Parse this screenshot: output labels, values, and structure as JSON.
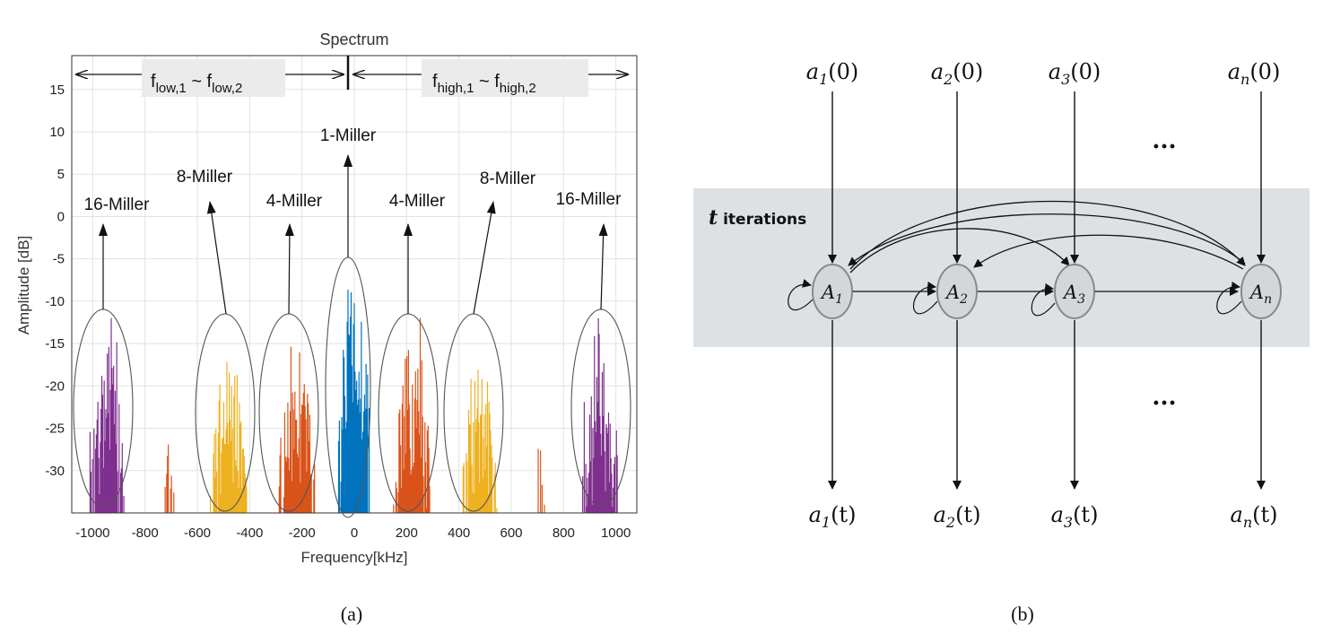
{
  "chart_data": {
    "type": "bar",
    "title": "Spectrum",
    "xlabel": "Frequency[kHz]",
    "ylabel": "Amplitude [dB]",
    "xlim": [
      -1080,
      1080
    ],
    "ylim": [
      -35,
      19
    ],
    "xticks": [
      "-1000",
      "-800",
      "-600",
      "-400",
      "-200",
      "0",
      "200",
      "400",
      "600",
      "800",
      "1000"
    ],
    "yticks": [
      "15",
      "10",
      "5",
      "0",
      "-5",
      "-10",
      "-15",
      "-20",
      "-25",
      "-30"
    ],
    "grid": true,
    "bands": [
      {
        "label_main": "f",
        "sub1": "low,1",
        "mid": " ~ f",
        "sub2": "low,2"
      },
      {
        "label_main": "f",
        "sub1": "high,1",
        "mid": " ~ f",
        "sub2": "high,2"
      }
    ],
    "annotations": [
      "16-Miller",
      "8-Miller",
      "4-Miller",
      "1-Miller",
      "4-Miller",
      "8-Miller",
      "16-Miller"
    ],
    "series": [
      {
        "name": "1-Miller",
        "color": "#0072bd",
        "center": 0,
        "peak": -4
      },
      {
        "name": "4-Miller",
        "color": "#d95319",
        "center": 220,
        "peak": -11
      },
      {
        "name": "8-Miller",
        "color": "#edb120",
        "center": 480,
        "peak": -13
      },
      {
        "name": "16-Miller",
        "color": "#7e2f8e",
        "center": 940,
        "peak": -12
      }
    ],
    "caption": "(a)"
  },
  "diagram": {
    "inputs": [
      {
        "base": "a",
        "sub": "1",
        "arg": "(0)"
      },
      {
        "base": "a",
        "sub": "2",
        "arg": "(0)"
      },
      {
        "base": "a",
        "sub": "3",
        "arg": "(0)"
      },
      {
        "base": "a",
        "sub": "n",
        "arg": "(0)"
      }
    ],
    "nodes": [
      {
        "base": "A",
        "sub": "1"
      },
      {
        "base": "A",
        "sub": "2"
      },
      {
        "base": "A",
        "sub": "3"
      },
      {
        "base": "A",
        "sub": "n"
      }
    ],
    "outputs": [
      {
        "base": "a",
        "sub": "1",
        "arg": "(t)"
      },
      {
        "base": "a",
        "sub": "2",
        "arg": "(t)"
      },
      {
        "base": "a",
        "sub": "3",
        "arg": "(t)"
      },
      {
        "base": "a",
        "sub": "n",
        "arg": "(t)"
      }
    ],
    "iterations_var": "t",
    "iterations_text": " iterations",
    "ellipsis": "···",
    "caption": "(b)"
  }
}
